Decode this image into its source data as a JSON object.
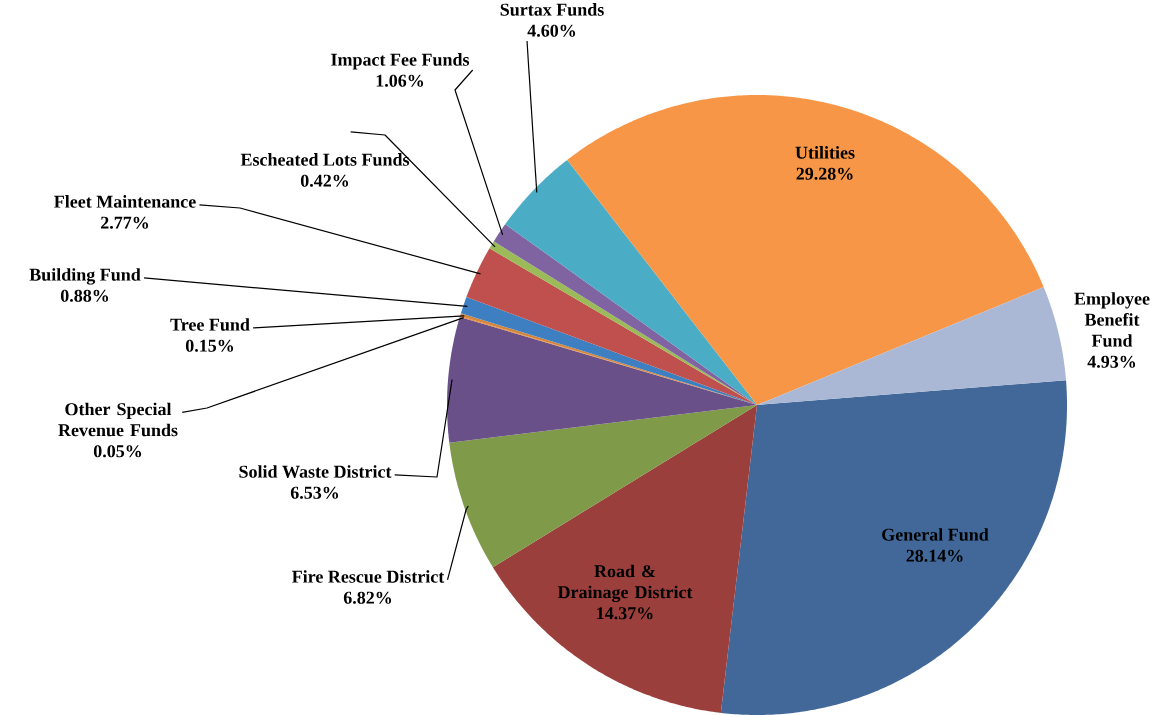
{
  "chart_data": {
    "type": "pie",
    "categories": [
      "General Fund",
      "Road & Drainage District",
      "Fire Rescue District",
      "Solid Waste District",
      "Other Special Revenue Funds",
      "Tree Fund",
      "Building Fund",
      "Fleet Maintenance",
      "Escheated Lots Funds",
      "Impact Fee Funds",
      "Surtax Funds",
      "Utilities",
      "Employee Benefit Fund"
    ],
    "values": [
      28.14,
      14.37,
      6.82,
      6.53,
      0.05,
      0.15,
      0.88,
      2.77,
      0.42,
      1.06,
      4.6,
      29.28,
      4.93
    ],
    "value_labels": [
      "28.14%",
      "14.37%",
      "6.82%",
      "6.53%",
      "0.05%",
      "0.15%",
      "0.88%",
      "2.77%",
      "0.42%",
      "1.06%",
      "4.60%",
      "29.28%",
      "4.93%"
    ],
    "colors": [
      "#416899",
      "#9b3f3c",
      "#7f9a48",
      "#6a5088",
      "#e8853a",
      "#d4873c",
      "#3d7fc1",
      "#c0504d",
      "#9bbb59",
      "#8064a2",
      "#4bacc6",
      "#f79646",
      "#aab8d6"
    ]
  }
}
